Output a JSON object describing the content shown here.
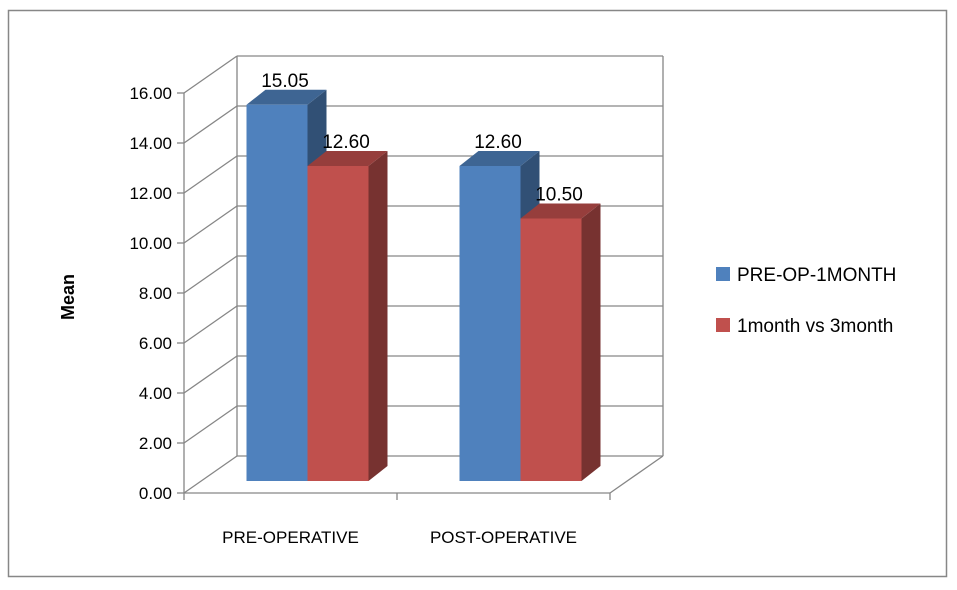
{
  "chart_data": {
    "type": "bar",
    "style": "3d-clustered-column",
    "categories": [
      "PRE-OPERATIVE",
      "POST-OPERATIVE"
    ],
    "series": [
      {
        "name": "PRE-OP-1MONTH",
        "values": [
          15.05,
          12.6
        ],
        "labels": [
          "15.05",
          "12.60"
        ],
        "color": "#4F81BD"
      },
      {
        "name": "1month vs 3month",
        "values": [
          12.6,
          10.5
        ],
        "labels": [
          "12.60",
          "10.50"
        ],
        "color": "#C0504D"
      }
    ],
    "title": "",
    "xlabel": "",
    "ylabel": "Mean",
    "ylim": [
      0,
      16
    ],
    "yticks": [
      "0.00",
      "2.00",
      "4.00",
      "6.00",
      "8.00",
      "10.00",
      "12.00",
      "14.00",
      "16.00"
    ],
    "grid": true,
    "legend": "right"
  }
}
